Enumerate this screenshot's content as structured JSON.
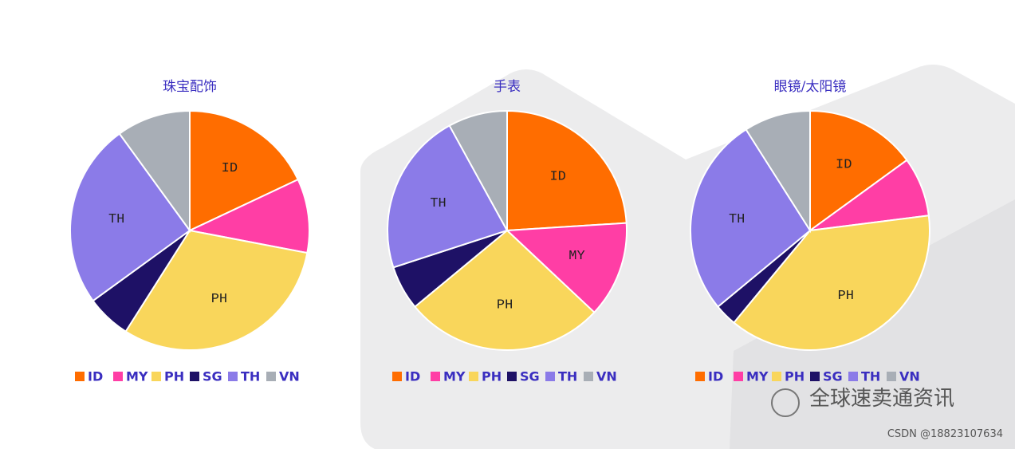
{
  "chart_data": [
    {
      "type": "pie",
      "title": "珠宝配饰",
      "categories": [
        "ID",
        "MY",
        "PH",
        "SG",
        "TH",
        "VN"
      ],
      "values": [
        18,
        10,
        31,
        6,
        25,
        10
      ],
      "colors": [
        "#ff6d00",
        "#ff3ea5",
        "#f9d65b",
        "#1e1166",
        "#8b7be8",
        "#a8aeb6"
      ]
    },
    {
      "type": "pie",
      "title": "手表",
      "categories": [
        "ID",
        "MY",
        "PH",
        "SG",
        "TH",
        "VN"
      ],
      "values": [
        24,
        13,
        27,
        6,
        22,
        8
      ],
      "colors": [
        "#ff6d00",
        "#ff3ea5",
        "#f9d65b",
        "#1e1166",
        "#8b7be8",
        "#a8aeb6"
      ]
    },
    {
      "type": "pie",
      "title": "眼镜/太阳镜",
      "categories": [
        "ID",
        "MY",
        "PH",
        "SG",
        "TH",
        "VN"
      ],
      "values": [
        15,
        8,
        38,
        3,
        27,
        9
      ],
      "colors": [
        "#ff6d00",
        "#ff3ea5",
        "#f9d65b",
        "#1e1166",
        "#8b7be8",
        "#a8aeb6"
      ]
    }
  ],
  "watermark": {
    "brand": "全球速卖通资讯",
    "source": "CSDN @18823107634"
  }
}
